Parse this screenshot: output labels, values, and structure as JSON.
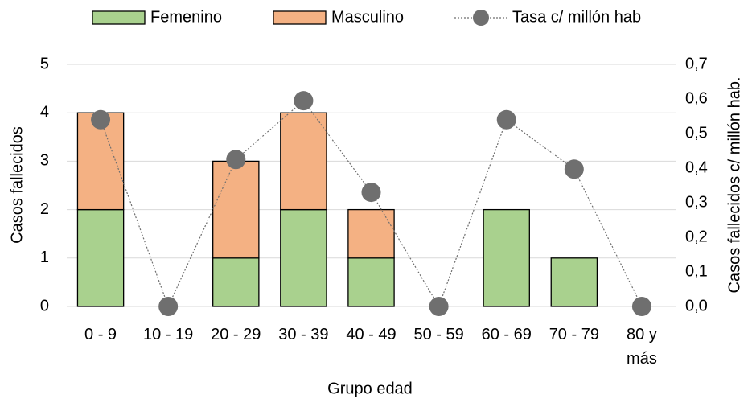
{
  "chart_data": {
    "type": "bar",
    "stacked": true,
    "categories": [
      "0 - 9",
      "10 - 19",
      "20 - 29",
      "30 - 39",
      "40 - 49",
      "50 - 59",
      "60 - 69",
      "70 - 79",
      "80 y más"
    ],
    "series": [
      {
        "name": "Femenino",
        "color": "#a9d18e",
        "values": [
          2,
          0,
          1,
          2,
          1,
          0,
          2,
          1,
          0
        ]
      },
      {
        "name": "Masculino",
        "color": "#f4b183",
        "values": [
          2,
          0,
          2,
          2,
          1,
          0,
          0,
          0,
          0
        ]
      },
      {
        "name": "Tasa c/ millón hab",
        "color": "#6f6f6f",
        "type": "line",
        "axis": "y2",
        "values": [
          0.54,
          0,
          0.425,
          0.595,
          0.33,
          0,
          0.54,
          0.397,
          0
        ]
      }
    ],
    "x_label": "Grupo edad",
    "y_label": "Casos fallecidos",
    "y2_label": "Casos fallecidos c/ millón hab.",
    "ylim": [
      0,
      5
    ],
    "yticks": [
      0,
      1,
      2,
      3,
      4,
      5
    ],
    "y2lim": [
      0,
      0.7
    ],
    "y2ticks": [
      {
        "value": 0,
        "label": "0,0"
      },
      {
        "value": 0.1,
        "label": "0,1"
      },
      {
        "value": 0.2,
        "label": "0,2"
      },
      {
        "value": 0.3,
        "label": "0,3"
      },
      {
        "value": 0.4,
        "label": "0,4"
      },
      {
        "value": 0.5,
        "label": "0,5"
      },
      {
        "value": 0.6,
        "label": "0,6"
      },
      {
        "value": 0.7,
        "label": "0,7"
      }
    ],
    "grid": true,
    "legend": "top"
  }
}
